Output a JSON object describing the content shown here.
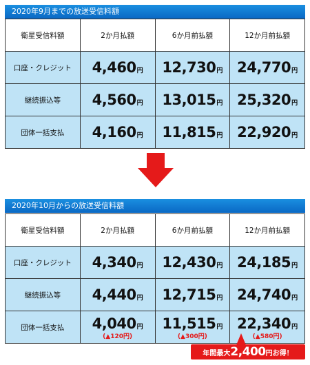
{
  "colors": {
    "header_blue": "#0a68c4",
    "cell_blue": "#bfe3f6",
    "accent_red": "#e51a1a"
  },
  "before": {
    "title": "2020年9月までの放送受信料額",
    "header": [
      "衛星受信料額",
      "2か月払額",
      "6か月前払額",
      "12か月前払額"
    ],
    "unit": "円",
    "rows": [
      {
        "label": "口座・クレジット",
        "values": [
          "4,460",
          "12,730",
          "24,770"
        ]
      },
      {
        "label": "継続振込等",
        "values": [
          "4,560",
          "13,015",
          "25,320"
        ]
      },
      {
        "label": "団体一括支払",
        "values": [
          "4,160",
          "11,815",
          "22,920"
        ]
      }
    ]
  },
  "arrow_icon": "down-arrow-icon",
  "after": {
    "title": "2020年10月からの放送受信料額",
    "header": [
      "衛星受信料額",
      "2か月払額",
      "6か月前払額",
      "12か月前払額"
    ],
    "unit": "円",
    "rows": [
      {
        "label": "口座・クレジット",
        "values": [
          "4,340",
          "12,430",
          "24,185"
        ]
      },
      {
        "label": "継続振込等",
        "values": [
          "4,440",
          "12,715",
          "24,740"
        ]
      },
      {
        "label": "団体一括支払",
        "values": [
          "4,040",
          "11,515",
          "22,340"
        ],
        "diffs": [
          "(▲120円)",
          "(▲300円)",
          "(▲580円)"
        ]
      }
    ]
  },
  "callout": {
    "prefix": "年間最大",
    "amount": "2,400",
    "suffix": "円お得！"
  }
}
